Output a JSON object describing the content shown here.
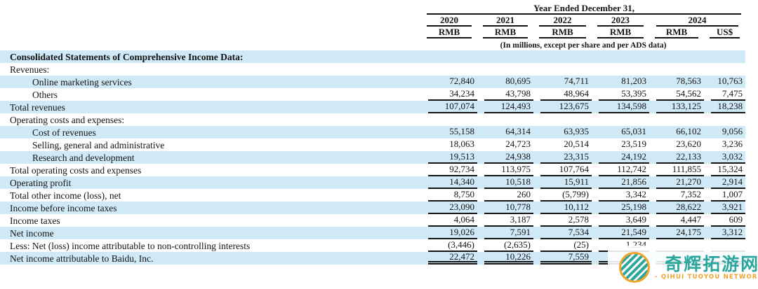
{
  "colors": {
    "stripe": "#cfe9f6",
    "ink": "#141414",
    "watermark_teal": "#2aa79c",
    "watermark_orange": "#f0a42c"
  },
  "table": {
    "header": {
      "span_title": "Year Ended December 31,",
      "years": [
        "2020",
        "2021",
        "2022",
        "2023",
        "2024"
      ],
      "currencies": [
        "RMB",
        "RMB",
        "RMB",
        "RMB",
        "RMB",
        "US$"
      ],
      "note": "(In millions, except per share and per ADS data)"
    },
    "rows": [
      {
        "label": "Consolidated Statements of Comprehensive Income Data:",
        "bold": true,
        "indent": false,
        "underline": "none",
        "values": [
          "",
          "",
          "",
          "",
          "",
          ""
        ]
      },
      {
        "label": "Revenues:",
        "bold": false,
        "indent": false,
        "underline": "none",
        "values": [
          "",
          "",
          "",
          "",
          "",
          ""
        ]
      },
      {
        "label": "Online marketing services",
        "bold": false,
        "indent": true,
        "underline": "none",
        "values": [
          "72,840",
          "80,695",
          "74,711",
          "81,203",
          "78,563",
          "10,763"
        ]
      },
      {
        "label": "Others",
        "bold": false,
        "indent": true,
        "underline": "single",
        "values": [
          "34,234",
          "43,798",
          "48,964",
          "53,395",
          "54,562",
          "7,475"
        ]
      },
      {
        "label": "Total revenues",
        "bold": false,
        "indent": false,
        "underline": "single",
        "values": [
          "107,074",
          "124,493",
          "123,675",
          "134,598",
          "133,125",
          "18,238"
        ]
      },
      {
        "label": "Operating costs and expenses:",
        "bold": false,
        "indent": false,
        "underline": "none",
        "values": [
          "",
          "",
          "",
          "",
          "",
          ""
        ]
      },
      {
        "label": "Cost of revenues",
        "bold": false,
        "indent": true,
        "underline": "none",
        "values": [
          "55,158",
          "64,314",
          "63,935",
          "65,031",
          "66,102",
          "9,056"
        ]
      },
      {
        "label": "Selling, general and administrative",
        "bold": false,
        "indent": true,
        "underline": "none",
        "values": [
          "18,063",
          "24,723",
          "20,514",
          "23,519",
          "23,620",
          "3,236"
        ]
      },
      {
        "label": "Research and development",
        "bold": false,
        "indent": true,
        "underline": "single",
        "values": [
          "19,513",
          "24,938",
          "23,315",
          "24,192",
          "22,133",
          "3,032"
        ]
      },
      {
        "label": "Total operating costs and expenses",
        "bold": false,
        "indent": false,
        "underline": "single",
        "values": [
          "92,734",
          "113,975",
          "107,764",
          "112,742",
          "111,855",
          "15,324"
        ]
      },
      {
        "label": "Operating profit",
        "bold": false,
        "indent": false,
        "underline": "single",
        "values": [
          "14,340",
          "10,518",
          "15,911",
          "21,856",
          "21,270",
          "2,914"
        ]
      },
      {
        "label": "Total other income (loss), net",
        "bold": false,
        "indent": false,
        "underline": "single",
        "values": [
          "8,750",
          "260",
          "(5,799)",
          "3,342",
          "7,352",
          "1,007"
        ]
      },
      {
        "label": "Income before income taxes",
        "bold": false,
        "indent": false,
        "underline": "single",
        "values": [
          "23,090",
          "10,778",
          "10,112",
          "25,198",
          "28,622",
          "3,921"
        ]
      },
      {
        "label": "Income taxes",
        "bold": false,
        "indent": false,
        "underline": "single",
        "values": [
          "4,064",
          "3,187",
          "2,578",
          "3,649",
          "4,447",
          "609"
        ]
      },
      {
        "label": "Net income",
        "bold": false,
        "indent": false,
        "underline": "single",
        "values": [
          "19,026",
          "7,591",
          "7,534",
          "21,549",
          "24,175",
          "3,312"
        ]
      },
      {
        "label": "Less: Net (loss) income attributable to non-controlling interests",
        "bold": false,
        "indent": false,
        "underline": "single",
        "values": [
          "(3,446)",
          "(2,635)",
          "(25)",
          "1,234",
          "",
          ""
        ]
      },
      {
        "label": "Net income attributable to Baidu, Inc.",
        "bold": false,
        "indent": false,
        "underline": "double",
        "values": [
          "22,472",
          "10,226",
          "7,559",
          "",
          "",
          ""
        ]
      }
    ]
  },
  "watermark": {
    "name_zh": "奇辉拓游网",
    "name_en": "- QIHUI TUOYOU NETWORK -"
  }
}
